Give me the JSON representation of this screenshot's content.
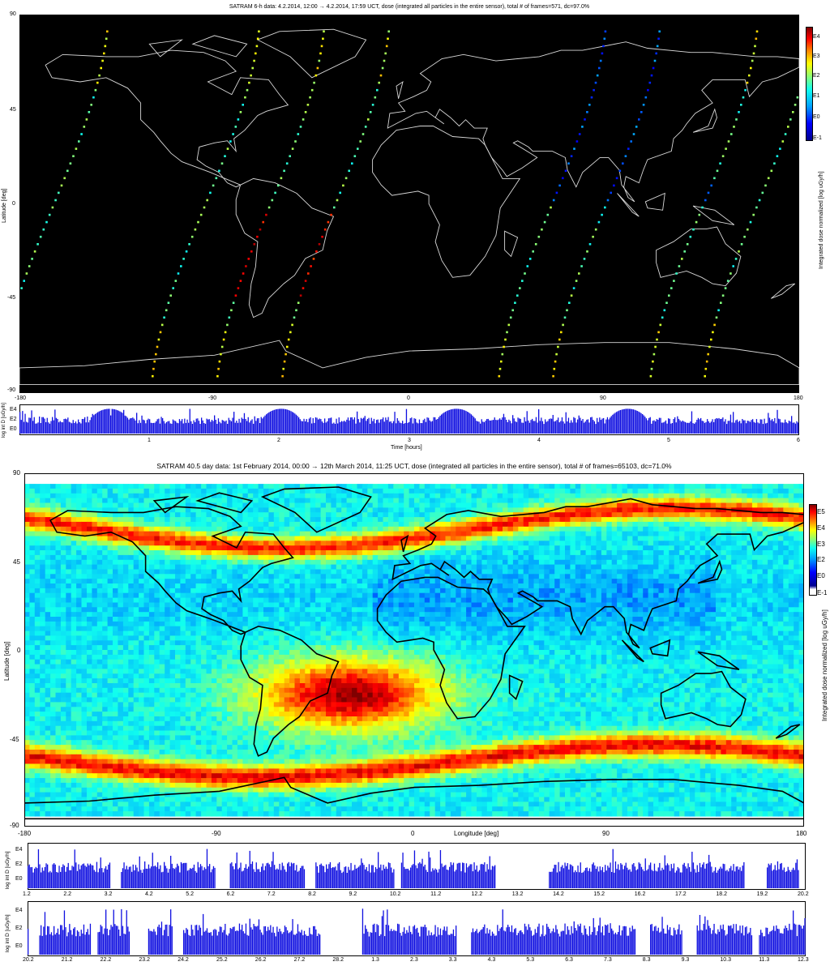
{
  "panel1": {
    "title": "SATRAM 6-h data: 4.2.2014, 12:00 → 4.2.2014, 17:59 UCT, dose (integrated all particles in the entire sensor), total # of frames=571, dc=97.0%",
    "ylabel": "Latitude [deg]",
    "lat_ticks": [
      "90",
      "45",
      "0",
      "-45",
      "-90"
    ],
    "lon_ticks": [
      "-180",
      "-90",
      "0",
      "90",
      "180"
    ],
    "colorbar_ticks": [
      "E4",
      "E3",
      "E2",
      "E1",
      "E0",
      "E-1"
    ],
    "colorbar_label": "Integrated dose normalized [log uGy/h]",
    "timeseries": {
      "ylabel": "log int D [uGy/h]",
      "yticks": [
        "E4",
        "E2",
        "E0"
      ],
      "xticks": [
        "1",
        "2",
        "3",
        "4",
        "5",
        "6"
      ],
      "xlabel": "Time [hours]"
    }
  },
  "panel2": {
    "title": "SATRAM 40.5 day data: 1st February 2014, 00:00 → 12th March 2014, 11:25 UCT, dose (integrated all particles in the entire sensor), total # of frames=65103, dc=71.0%",
    "ylabel": "Latitude [deg]",
    "xlabel": "Longitude [deg]",
    "lat_ticks": [
      "90",
      "45",
      "0",
      "-45",
      "-90"
    ],
    "lon_ticks": [
      "-180",
      "-90",
      "0",
      "90",
      "180"
    ],
    "colorbar_ticks": [
      "E5",
      "E4",
      "E3",
      "E2",
      "E0",
      "E-1"
    ],
    "colorbar_label": "Integrated dose normalized [log uGy/h]",
    "timeseries1": {
      "ylabel": "log int D [uGy/h]",
      "yticks": [
        "E4",
        "E2",
        "E0"
      ],
      "xticks": [
        "1.2",
        "2.2",
        "3.2",
        "4.2",
        "5.2",
        "6.2",
        "7.2",
        "8.2",
        "9.2",
        "10.2",
        "11.2",
        "12.2",
        "13.2",
        "14.2",
        "15.2",
        "16.2",
        "17.2",
        "18.2",
        "19.2",
        "20.2"
      ]
    },
    "timeseries2": {
      "ylabel": "log int D [uGy/h]",
      "yticks": [
        "E4",
        "E2",
        "E0"
      ],
      "xticks": [
        "20.2",
        "21.2",
        "22.2",
        "23.2",
        "24.2",
        "25.2",
        "26.2",
        "27.2",
        "28.2",
        "1.3",
        "2.3",
        "3.3",
        "4.3",
        "5.3",
        "6.3",
        "7.3",
        "8.3",
        "9.3",
        "10.3",
        "11.3",
        "12.3"
      ]
    }
  },
  "colors": {
    "map_background": "#000000",
    "coastline_dark": "#d8d8d8",
    "coastline_light": "#000000",
    "timeseries_bar": "#1010e0",
    "colormap": [
      "#00008f",
      "#0000ff",
      "#00a0ff",
      "#10ffef",
      "#90ff70",
      "#ffff00",
      "#ff8000",
      "#ff0000",
      "#800000"
    ]
  }
}
